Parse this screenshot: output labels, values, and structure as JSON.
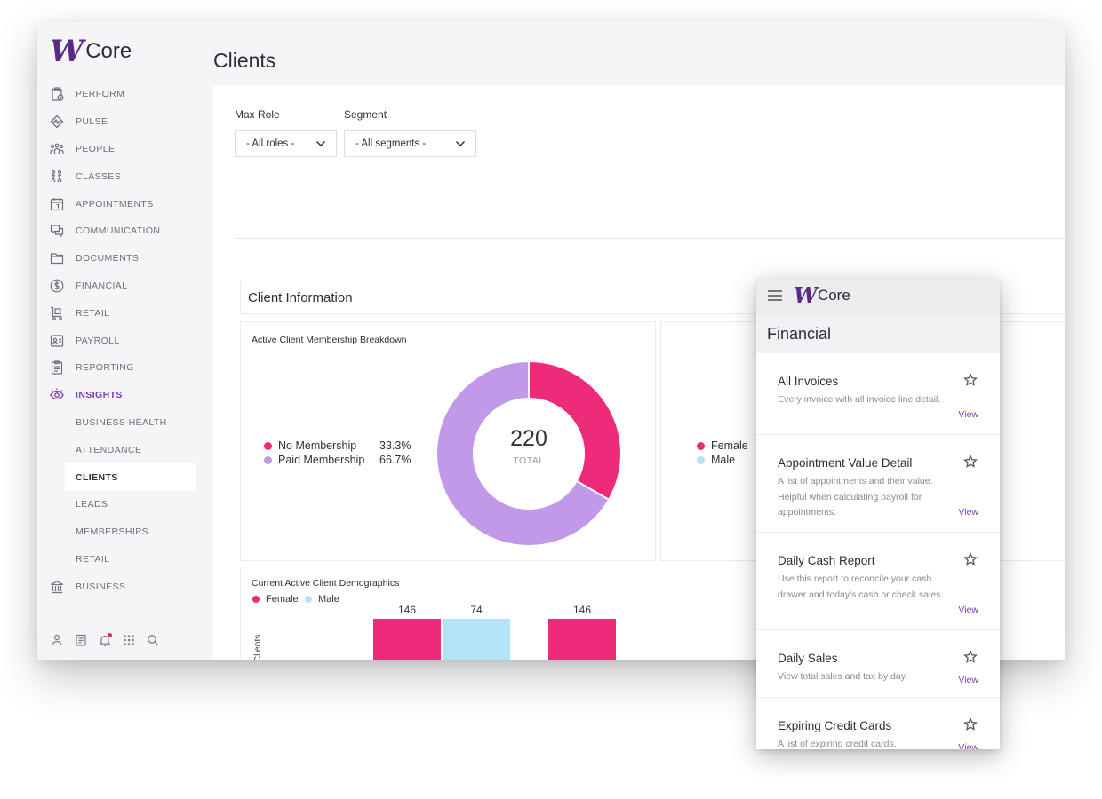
{
  "app": {
    "logo_mark": "W",
    "logo_text": "Core"
  },
  "page": {
    "title": "Clients"
  },
  "sidebar": {
    "items": [
      {
        "label": "PERFORM",
        "icon": "clipboard-check-icon"
      },
      {
        "label": "PULSE",
        "icon": "diamond-pulse-icon"
      },
      {
        "label": "PEOPLE",
        "icon": "people-group-icon"
      },
      {
        "label": "CLASSES",
        "icon": "classes-figures-icon"
      },
      {
        "label": "APPOINTMENTS",
        "icon": "calendar-icon"
      },
      {
        "label": "COMMUNICATION",
        "icon": "chat-bubbles-icon"
      },
      {
        "label": "DOCUMENTS",
        "icon": "folder-icon"
      },
      {
        "label": "FINANCIAL",
        "icon": "dollar-circle-icon"
      },
      {
        "label": "RETAIL",
        "icon": "cart-icon"
      },
      {
        "label": "PAYROLL",
        "icon": "payroll-icon"
      },
      {
        "label": "REPORTING",
        "icon": "report-icon"
      },
      {
        "label": "INSIGHTS",
        "icon": "eye-icon",
        "active": true
      }
    ],
    "insights_sub": [
      "BUSINESS HEALTH",
      "ATTENDANCE",
      "CLIENTS",
      "LEADS",
      "MEMBERSHIPS",
      "RETAIL"
    ],
    "current_sub": "CLIENTS",
    "business": {
      "label": "BUSINESS",
      "icon": "building-icon"
    },
    "bottom_icons": [
      "user-icon",
      "notes-icon",
      "bell-icon",
      "apps-grid-icon",
      "search-icon"
    ]
  },
  "filters": {
    "max_role": {
      "label": "Max Role",
      "value": "- All roles -"
    },
    "segment": {
      "label": "Segment",
      "value": "- All segments -"
    }
  },
  "section": {
    "title": "Client Information"
  },
  "membership_card": {
    "title": "Active Client Membership Breakdown",
    "legend": [
      {
        "name": "No Membership",
        "pct": "33.3%",
        "color": "#ee2a7b"
      },
      {
        "name": "Paid Membership",
        "pct": "66.7%",
        "color": "#c09ae8"
      }
    ],
    "center_value": "220",
    "center_label": "TOTAL"
  },
  "gender_card": {
    "legend": [
      {
        "name": "Female",
        "color": "#ee2a7b"
      },
      {
        "name": "Male",
        "color": "#b3e3f6"
      }
    ]
  },
  "demographics_card": {
    "title": "Current Active Client Demographics",
    "legend": [
      {
        "name": "Female",
        "color": "#ee2a7b"
      },
      {
        "name": "Male",
        "color": "#b3e3f6"
      }
    ],
    "ylabel": "Active Clients"
  },
  "chart_data": [
    {
      "type": "pie",
      "title": "Active Client Membership Breakdown",
      "labels": [
        "No Membership",
        "Paid Membership"
      ],
      "values": [
        33.3,
        66.7
      ],
      "colors": [
        "#ee2a7b",
        "#c09ae8"
      ],
      "donut": true,
      "center_text": "220 TOTAL",
      "legend_position": "left"
    },
    {
      "type": "bar",
      "title": "Current Active Client Demographics",
      "ylabel": "Active Clients",
      "series": [
        {
          "name": "Female",
          "values": [
            146,
            146
          ],
          "color": "#ee2a7b"
        },
        {
          "name": "Male",
          "values": [
            74
          ],
          "color": "#b3e3f6"
        }
      ],
      "data_labels": [
        "146",
        "74",
        "146"
      ],
      "legend_position": "top-left"
    }
  ],
  "mobile": {
    "logo_mark": "W",
    "logo_text": "Core",
    "section_title": "Financial",
    "reports": [
      {
        "title": "All Invoices",
        "desc": "Every invoice with all invoice line detail.",
        "view": "View"
      },
      {
        "title": "Appointment Value Detail",
        "desc": "A list of appointments and their value. Helpful when calculating payroll for appointments.",
        "view": "View"
      },
      {
        "title": "Daily Cash Report",
        "desc": "Use this report to reconcile your cash drawer and today's cash or check sales.",
        "view": "View"
      },
      {
        "title": "Daily Sales",
        "desc": "View total sales and tax by day.",
        "view": "View"
      },
      {
        "title": "Expiring Credit Cards",
        "desc": "A list of expiring credit cards.",
        "view": "View"
      }
    ]
  }
}
